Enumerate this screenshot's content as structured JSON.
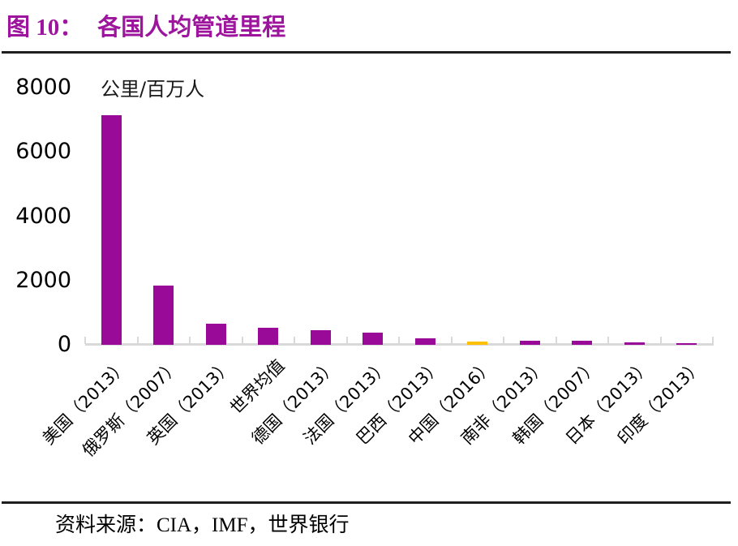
{
  "page": {
    "title_prefix": "图 10：",
    "title_text": "各国人均管道里程",
    "source_note": "资料来源：CIA，IMF，世界银行"
  },
  "chart_data": {
    "type": "bar",
    "title": "各国人均管道里程",
    "unit_label": "公里/百万人",
    "categories": [
      "美国（2013）",
      "俄罗斯（2007）",
      "英国（2013）",
      "世界均值",
      "德国（2013）",
      "法国（2013）",
      "巴西（2013）",
      "中国（2016）",
      "南非（2013）",
      "韩国（2007）",
      "日本（2013）",
      "印度（2013）"
    ],
    "values": [
      7150,
      1830,
      650,
      520,
      450,
      380,
      200,
      100,
      130,
      120,
      85,
      60
    ],
    "highlight_index": 7,
    "xlabel": "",
    "ylabel": "公里/百万人",
    "ylim": [
      0,
      8000
    ],
    "yticks": [
      0,
      2000,
      4000,
      6000,
      8000
    ],
    "grid": false,
    "legend": "none",
    "colors": {
      "bar": "#980A97",
      "highlight_bar": "#FFC000",
      "axis_line": "#D9D9D9",
      "title_accent": "#9C159C"
    }
  }
}
